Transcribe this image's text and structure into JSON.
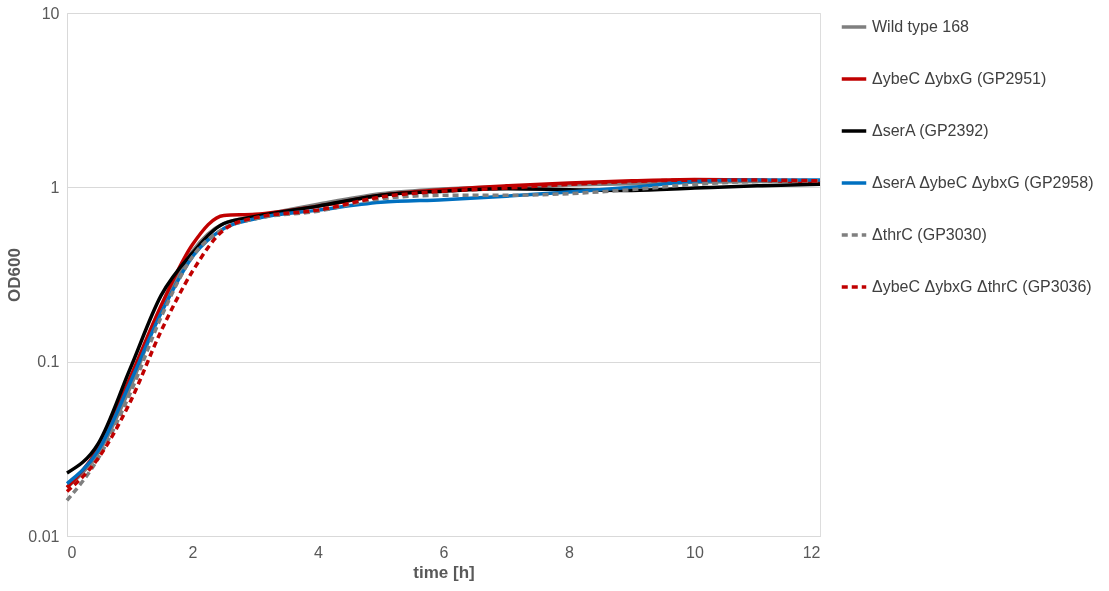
{
  "chart_data": {
    "type": "line",
    "xlabel": "time [h]",
    "ylabel": "OD600",
    "log": "y",
    "grid": "y",
    "legend": "right",
    "marker": "none",
    "x": [
      0,
      0.5,
      1,
      1.5,
      2,
      2.5,
      3,
      4,
      5,
      6,
      7,
      8,
      9,
      10,
      11,
      12
    ],
    "xlim": [
      0,
      12
    ],
    "xticks": [
      0,
      2,
      4,
      6,
      8,
      10,
      12
    ],
    "ylim": [
      0.01,
      10
    ],
    "yticks": [
      0.01,
      0.1,
      1,
      10
    ],
    "series": [
      {
        "name": "Wild type 168",
        "color": "#7f7f7f",
        "line_style": "solid",
        "values": [
          0.019,
          0.03,
          0.07,
          0.2,
          0.43,
          0.62,
          0.68,
          0.8,
          0.92,
          0.98,
          1.01,
          1.03,
          1.05,
          1.07,
          1.08,
          1.09
        ]
      },
      {
        "name": "ΔybeC ΔybxG (GP2951)",
        "color": "#c00000",
        "line_style": "solid",
        "values": [
          0.019,
          0.032,
          0.08,
          0.21,
          0.47,
          0.69,
          0.7,
          0.78,
          0.9,
          0.97,
          1.02,
          1.06,
          1.09,
          1.11,
          1.1,
          1.06
        ]
      },
      {
        "name": "ΔserA (GP2392)",
        "color": "#000000",
        "line_style": "solid",
        "values": [
          0.023,
          0.034,
          0.09,
          0.24,
          0.42,
          0.62,
          0.68,
          0.78,
          0.9,
          0.95,
          0.98,
          0.97,
          0.96,
          0.99,
          1.02,
          1.04
        ]
      },
      {
        "name": "ΔserA ΔybeC ΔybxG (GP2958)",
        "color": "#0070c0",
        "line_style": "solid",
        "values": [
          0.02,
          0.031,
          0.075,
          0.19,
          0.4,
          0.58,
          0.66,
          0.74,
          0.82,
          0.85,
          0.89,
          0.94,
          1.0,
          1.08,
          1.1,
          1.1
        ]
      },
      {
        "name": "ΔthrC (GP3030)",
        "color": "#7f7f7f",
        "line_style": "dashed",
        "values": [
          0.016,
          0.028,
          0.065,
          0.18,
          0.4,
          0.58,
          0.66,
          0.73,
          0.86,
          0.9,
          0.9,
          0.92,
          0.97,
          1.04,
          1.08,
          1.09
        ]
      },
      {
        "name": "ΔybeC ΔybxG ΔthrC (GP3036)",
        "color": "#c00000",
        "line_style": "dashed",
        "values": [
          0.018,
          0.028,
          0.058,
          0.15,
          0.33,
          0.57,
          0.67,
          0.74,
          0.88,
          0.95,
          0.99,
          1.04,
          1.08,
          1.1,
          1.1,
          1.09
        ]
      }
    ]
  }
}
